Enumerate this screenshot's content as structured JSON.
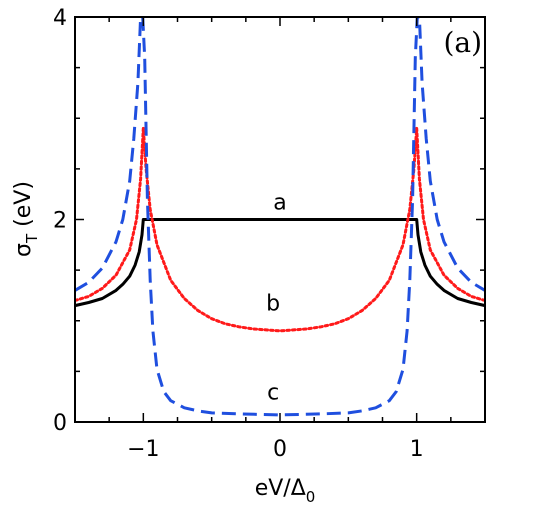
{
  "chart_data": {
    "type": "line",
    "panel_label": "(a)",
    "xlabel": "eV/Δ",
    "xlabel_sub": "0",
    "ylabel": "σ",
    "ylabel_sub": "T",
    "ylabel_unit": " (eV)",
    "xlim": [
      -1.5,
      1.5
    ],
    "ylim": [
      0,
      4
    ],
    "xticks": [
      -1,
      0,
      1
    ],
    "xtick_labels": [
      "−1",
      "0",
      "1"
    ],
    "yticks": [
      0,
      2,
      4
    ],
    "ytick_labels": [
      "0",
      "2",
      "4"
    ],
    "grid": false,
    "series": [
      {
        "name": "a",
        "color": "#000000",
        "style": "solid",
        "x": [
          -1.5,
          -1.4,
          -1.3,
          -1.2,
          -1.15,
          -1.1,
          -1.06,
          -1.03,
          -1.01,
          -1.0,
          -0.5,
          0,
          0.5,
          1.0,
          1.01,
          1.03,
          1.06,
          1.1,
          1.15,
          1.2,
          1.3,
          1.4,
          1.5
        ],
        "y": [
          1.15,
          1.18,
          1.22,
          1.3,
          1.36,
          1.44,
          1.55,
          1.68,
          1.85,
          2.0,
          2.0,
          2.0,
          2.0,
          2.0,
          1.85,
          1.68,
          1.55,
          1.44,
          1.36,
          1.3,
          1.22,
          1.18,
          1.15
        ]
      },
      {
        "name": "b",
        "color": "#ff1a1a",
        "style": "dotted",
        "x": [
          -1.5,
          -1.4,
          -1.3,
          -1.2,
          -1.1,
          -1.05,
          -1.02,
          -1.0,
          -0.98,
          -0.95,
          -0.9,
          -0.8,
          -0.7,
          -0.6,
          -0.5,
          -0.4,
          -0.3,
          -0.2,
          -0.1,
          0,
          0.1,
          0.2,
          0.3,
          0.4,
          0.5,
          0.6,
          0.7,
          0.8,
          0.9,
          0.95,
          0.98,
          1.0,
          1.02,
          1.05,
          1.1,
          1.2,
          1.3,
          1.4,
          1.5
        ],
        "y": [
          1.2,
          1.24,
          1.32,
          1.45,
          1.7,
          2.0,
          2.4,
          2.9,
          2.5,
          2.1,
          1.75,
          1.4,
          1.22,
          1.1,
          1.02,
          0.97,
          0.94,
          0.92,
          0.91,
          0.9,
          0.91,
          0.92,
          0.94,
          0.97,
          1.02,
          1.1,
          1.22,
          1.4,
          1.75,
          2.1,
          2.5,
          2.9,
          2.4,
          2.0,
          1.7,
          1.45,
          1.32,
          1.24,
          1.2
        ]
      },
      {
        "name": "c",
        "color": "#1f4fdf",
        "style": "dashed",
        "x": [
          -1.5,
          -1.4,
          -1.3,
          -1.2,
          -1.15,
          -1.1,
          -1.07,
          -1.04,
          -1.02,
          -1.005,
          -0.99,
          -0.97,
          -0.95,
          -0.93,
          -0.9,
          -0.85,
          -0.8,
          -0.7,
          -0.6,
          -0.5,
          -0.3,
          0,
          0.3,
          0.5,
          0.6,
          0.7,
          0.8,
          0.85,
          0.9,
          0.93,
          0.95,
          0.97,
          0.99,
          1.005,
          1.02,
          1.04,
          1.07,
          1.1,
          1.15,
          1.2,
          1.3,
          1.4,
          1.5
        ],
        "y": [
          1.3,
          1.38,
          1.52,
          1.78,
          2.0,
          2.38,
          2.8,
          3.35,
          4.0,
          4.0,
          3.6,
          2.2,
          1.4,
          0.9,
          0.52,
          0.3,
          0.21,
          0.14,
          0.11,
          0.09,
          0.08,
          0.07,
          0.08,
          0.09,
          0.11,
          0.14,
          0.21,
          0.3,
          0.52,
          0.9,
          1.4,
          2.2,
          3.6,
          4.0,
          4.0,
          3.35,
          2.8,
          2.38,
          2.0,
          1.78,
          1.52,
          1.38,
          1.3
        ]
      }
    ],
    "annotations": [
      {
        "text": "a",
        "x": 0.0,
        "y": 2.1
      },
      {
        "text": "b",
        "x": -0.05,
        "y": 1.1
      },
      {
        "text": "c",
        "x": -0.05,
        "y": 0.22
      }
    ]
  }
}
